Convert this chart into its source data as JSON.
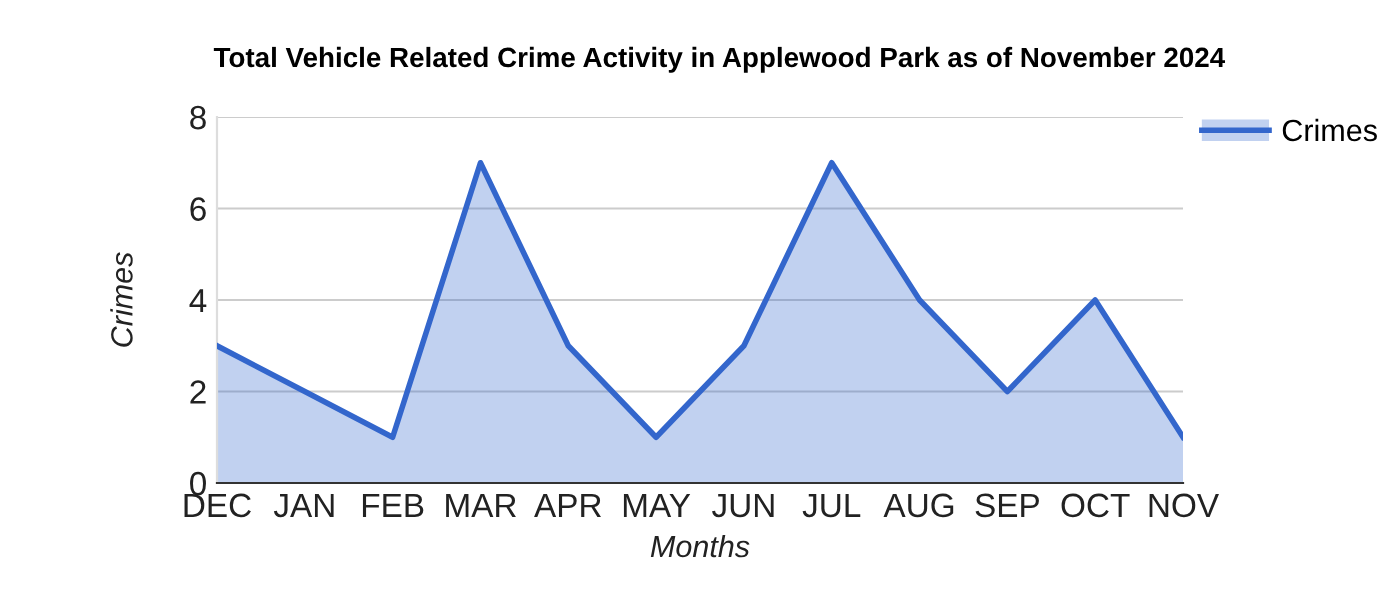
{
  "chart_data": {
    "type": "area",
    "title": "Total Vehicle Related Crime Activity in Applewood Park as of November 2024",
    "xlabel": "Months",
    "ylabel": "Crimes",
    "categories": [
      "DEC",
      "JAN",
      "FEB",
      "MAR",
      "APR",
      "MAY",
      "JUN",
      "JUL",
      "AUG",
      "SEP",
      "OCT",
      "NOV"
    ],
    "series": [
      {
        "name": "Crimes",
        "color": "#3366cc",
        "values": [
          3,
          2,
          1,
          7,
          3,
          1,
          3,
          7,
          4,
          2,
          4,
          1
        ]
      }
    ],
    "ylim": [
      0,
      8
    ],
    "yticks": [
      0,
      2,
      4,
      6,
      8
    ],
    "grid": "y",
    "legend": "top right"
  }
}
